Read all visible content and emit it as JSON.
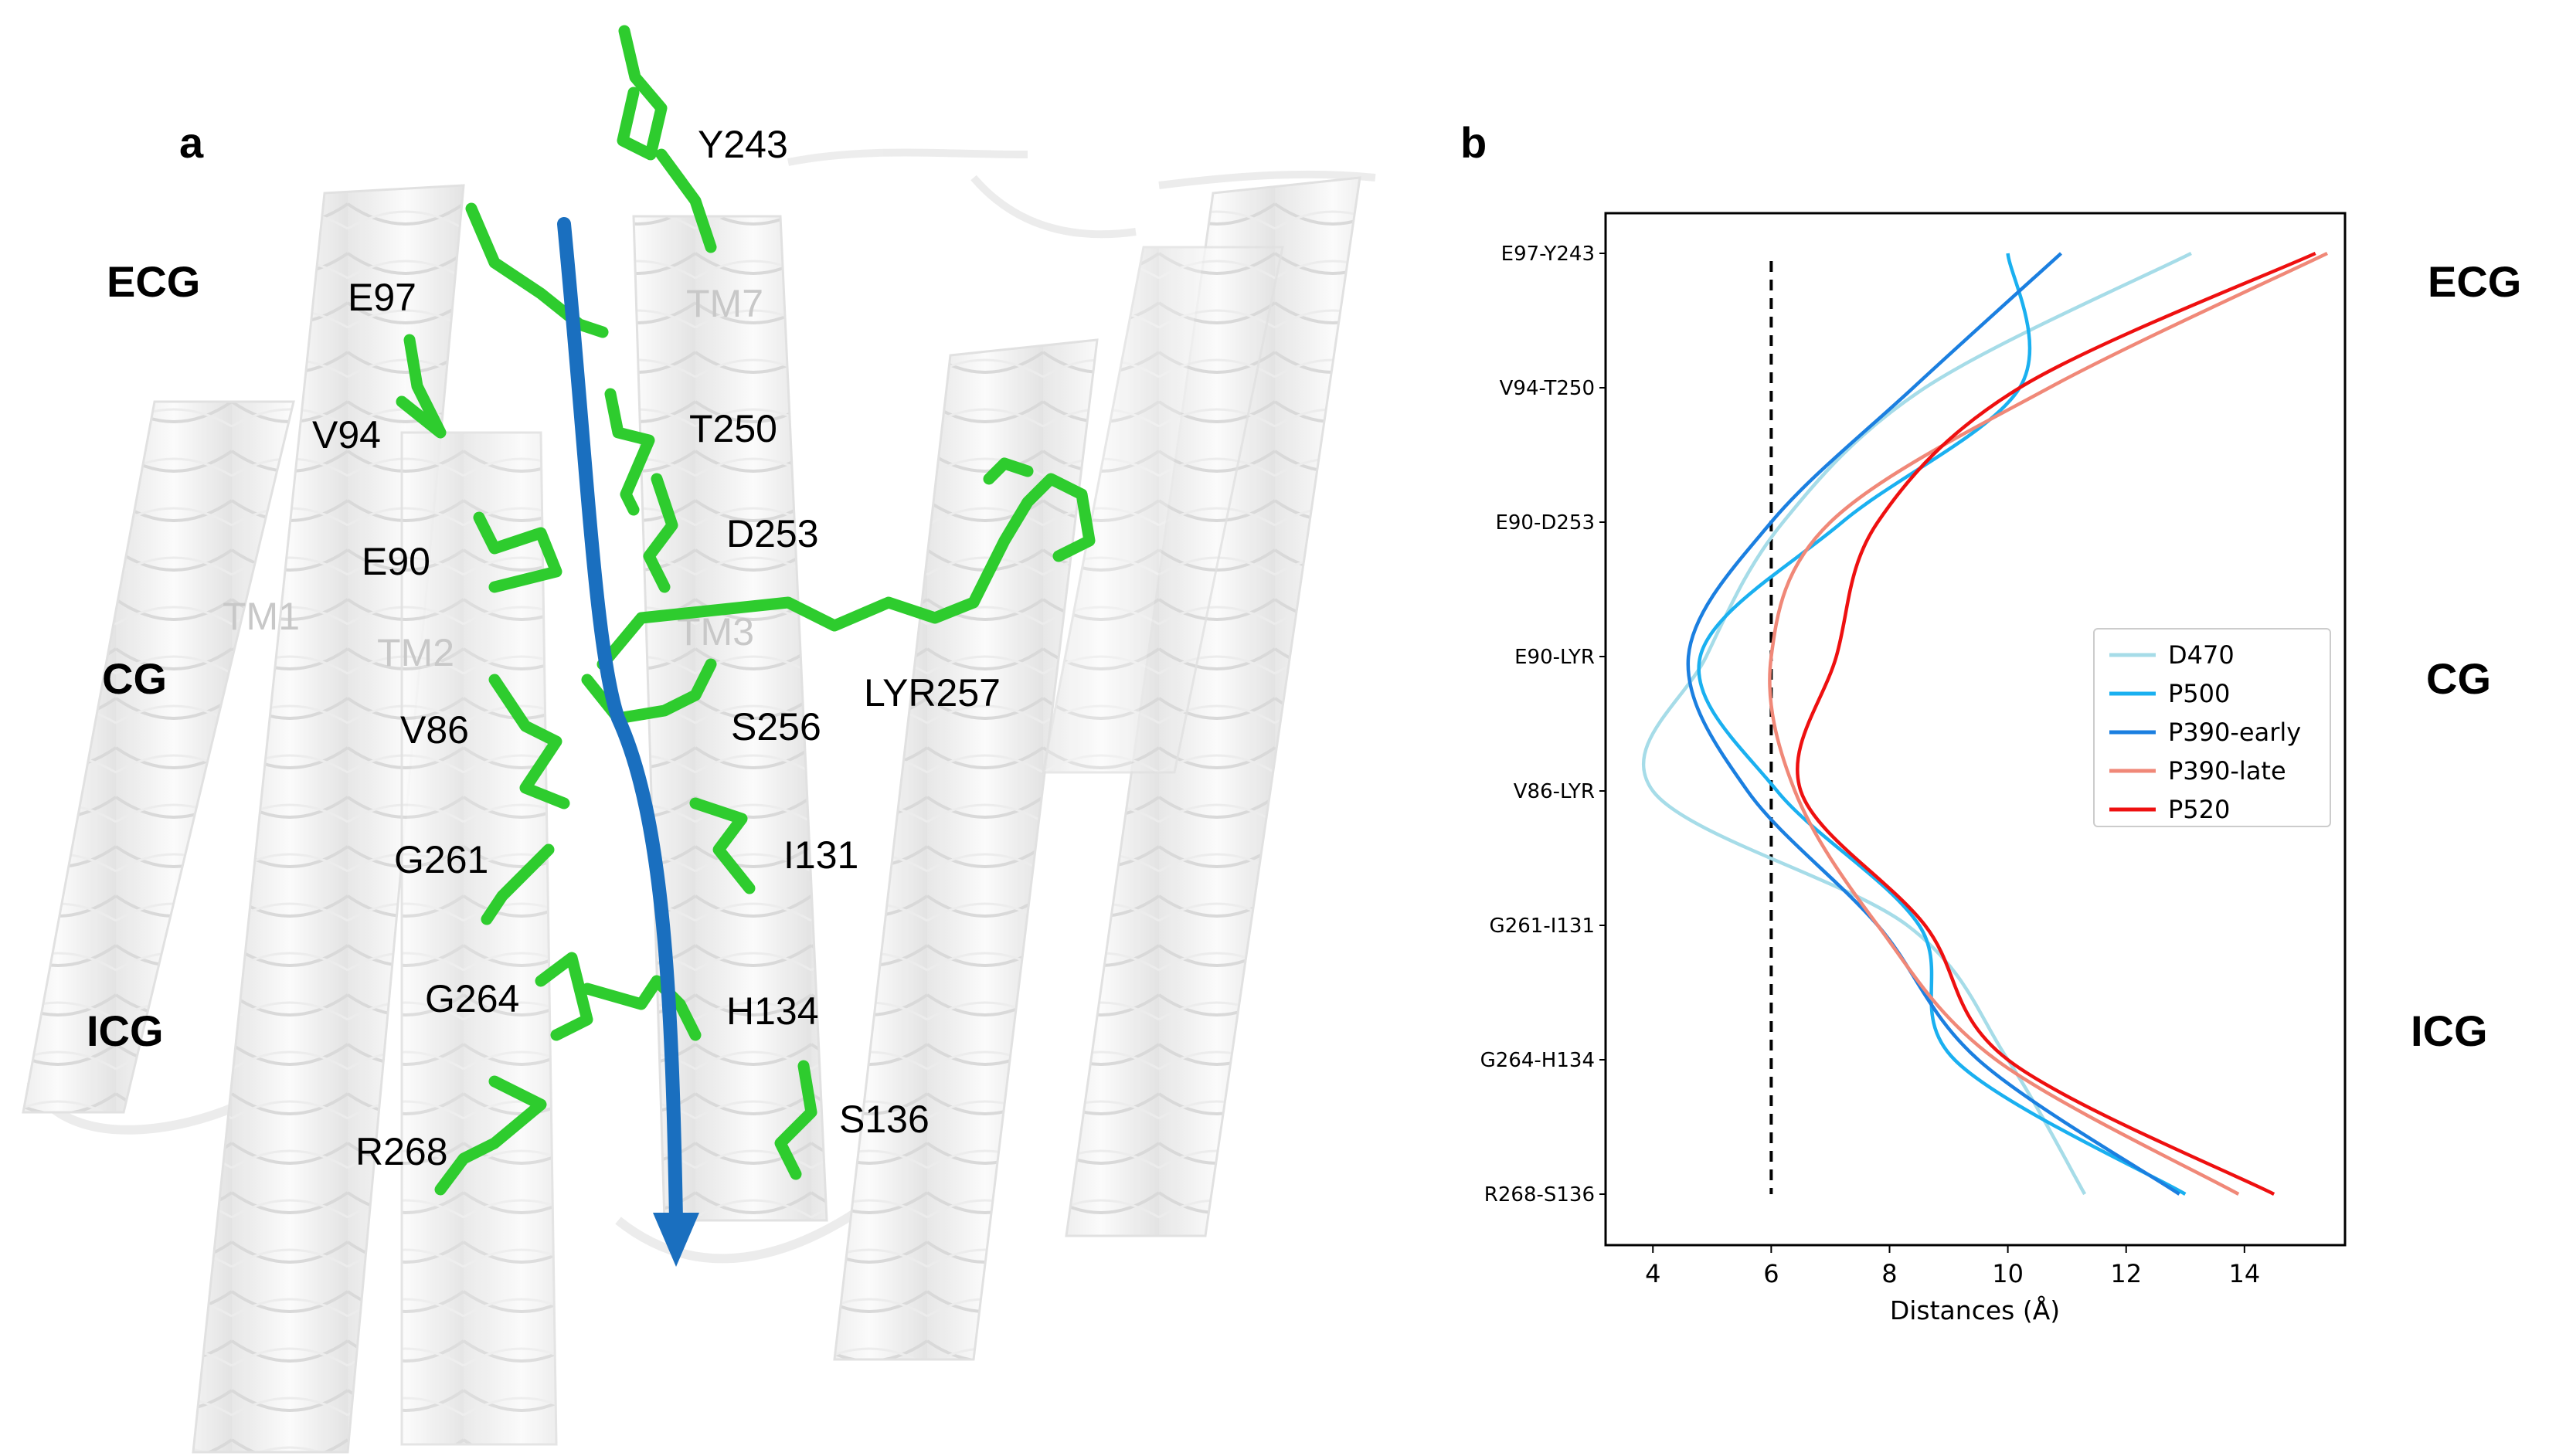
{
  "panel_a": {
    "letter": "a",
    "regions": [
      "ECG",
      "CG",
      "ICG"
    ],
    "helix_labels": [
      "TM7",
      "TM1",
      "TM2",
      "TM3"
    ],
    "residues": [
      "Y243",
      "E97",
      "V94",
      "T250",
      "E90",
      "D253",
      "V86",
      "LYR257",
      "S256",
      "G261",
      "I131",
      "G264",
      "H134",
      "S136",
      "R268"
    ],
    "colors": {
      "sticks": "#2ecc2e",
      "arrow": "#1a6fbf",
      "cartoon": "#efefef"
    },
    "icons": [
      "protein-cartoon",
      "pathway-arrow",
      "residue-sticks"
    ]
  },
  "panel_b": {
    "letter": "b",
    "regions": [
      "ECG",
      "CG",
      "ICG"
    ]
  },
  "chart_data": {
    "type": "line",
    "xlabel": "Distances (Å)",
    "ylabel": "",
    "xlim": [
      3.2,
      15.7
    ],
    "xticks": [
      4,
      6,
      8,
      10,
      12,
      14
    ],
    "categories": [
      "E97-Y243",
      "V94-T250",
      "E90-D253",
      "E90-LYR",
      "V86-LYR",
      "G261-I131",
      "G264-H134",
      "R268-S136"
    ],
    "threshold": 6,
    "legend_position": "center-right",
    "grid": false,
    "series": [
      {
        "name": "D470",
        "color": "#a6dce8",
        "values": [
          13.1,
          8.6,
          6.2,
          4.9,
          4.0,
          8.3,
          10.0,
          11.3
        ]
      },
      {
        "name": "P500",
        "color": "#1ab0f0",
        "values": [
          10.0,
          10.2,
          7.2,
          4.8,
          6.1,
          8.5,
          9.1,
          13.0
        ]
      },
      {
        "name": "P390-early",
        "color": "#1b7fe0",
        "values": [
          10.9,
          8.4,
          6.0,
          4.6,
          5.6,
          7.8,
          9.5,
          12.9
        ]
      },
      {
        "name": "P390-late",
        "color": "#f08878",
        "values": [
          15.4,
          10.7,
          7.0,
          6.0,
          6.4,
          7.8,
          9.8,
          13.9
        ]
      },
      {
        "name": "P520",
        "color": "#ee1010",
        "values": [
          15.2,
          10.2,
          7.8,
          7.1,
          6.5,
          8.6,
          10.0,
          14.5
        ]
      }
    ]
  }
}
